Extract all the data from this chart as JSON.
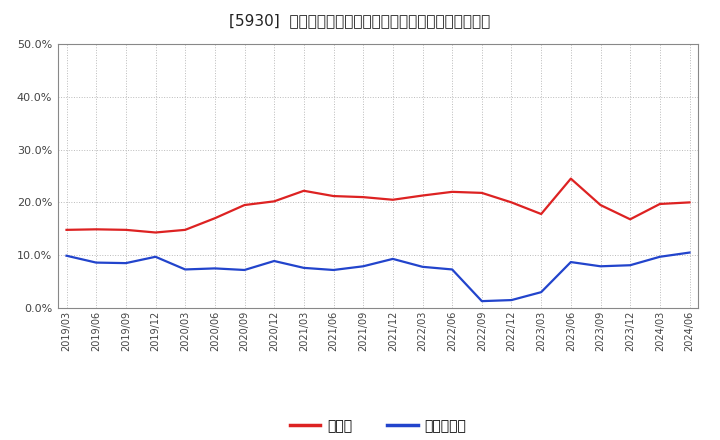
{
  "title": "[5930]  現預金、有利子負債の総資産に対する比率の推移",
  "x_labels": [
    "2019/03",
    "2019/06",
    "2019/09",
    "2019/12",
    "2020/03",
    "2020/06",
    "2020/09",
    "2020/12",
    "2021/03",
    "2021/06",
    "2021/09",
    "2021/12",
    "2022/03",
    "2022/06",
    "2022/09",
    "2022/12",
    "2023/03",
    "2023/06",
    "2023/09",
    "2023/12",
    "2024/03",
    "2024/06"
  ],
  "cash_values": [
    0.148,
    0.149,
    0.148,
    0.143,
    0.148,
    0.17,
    0.195,
    0.202,
    0.222,
    0.212,
    0.21,
    0.205,
    0.213,
    0.22,
    0.218,
    0.2,
    0.178,
    0.245,
    0.195,
    0.168,
    0.197,
    0.2
  ],
  "debt_values": [
    0.099,
    0.086,
    0.085,
    0.097,
    0.073,
    0.075,
    0.072,
    0.089,
    0.076,
    0.072,
    0.079,
    0.093,
    0.078,
    0.073,
    0.013,
    0.015,
    0.03,
    0.087,
    0.079,
    0.081,
    0.097,
    0.105
  ],
  "cash_color": "#dd2222",
  "debt_color": "#2244cc",
  "background_color": "#ffffff",
  "plot_bg_color": "#ffffff",
  "grid_color": "#bbbbbb",
  "ylim": [
    0.0,
    0.5
  ],
  "yticks": [
    0.0,
    0.1,
    0.2,
    0.3,
    0.4,
    0.5
  ],
  "legend_cash": "現預金",
  "legend_debt": "有利子負債",
  "title_fontsize": 11,
  "axis_fontsize": 8,
  "legend_fontsize": 10,
  "line_width": 1.6
}
